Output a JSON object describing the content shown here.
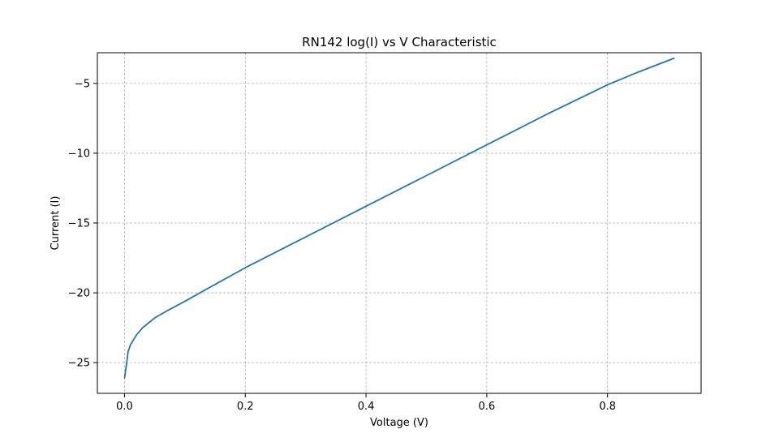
{
  "chart_data": {
    "type": "line",
    "title": "RN142 log(I) vs V Characteristic",
    "xlabel": "Voltage (V)",
    "ylabel": "Current (I)",
    "xlim": [
      -0.045,
      0.955
    ],
    "ylim": [
      -27.2,
      -2.8
    ],
    "x_ticks": [
      0.0,
      0.2,
      0.4,
      0.6,
      0.8
    ],
    "x_tick_labels": [
      "0.0",
      "0.2",
      "0.4",
      "0.6",
      "0.8"
    ],
    "y_ticks": [
      -25,
      -20,
      -15,
      -10,
      -5
    ],
    "y_tick_labels": [
      "−25",
      "−20",
      "−15",
      "−10",
      "−5"
    ],
    "grid": true,
    "series_color": "#1f77b4",
    "series": [
      {
        "x": [
          0.0,
          0.003,
          0.006,
          0.01,
          0.02,
          0.03,
          0.05,
          0.07,
          0.1,
          0.15,
          0.2,
          0.3,
          0.4,
          0.5,
          0.6,
          0.7,
          0.8,
          0.85,
          0.91
        ],
        "values": [
          -26.1,
          -25.2,
          -24.2,
          -23.7,
          -23.0,
          -22.5,
          -21.8,
          -21.3,
          -20.6,
          -19.4,
          -18.2,
          -16.0,
          -13.8,
          -11.6,
          -9.4,
          -7.2,
          -5.1,
          -4.2,
          -3.2
        ]
      }
    ]
  }
}
